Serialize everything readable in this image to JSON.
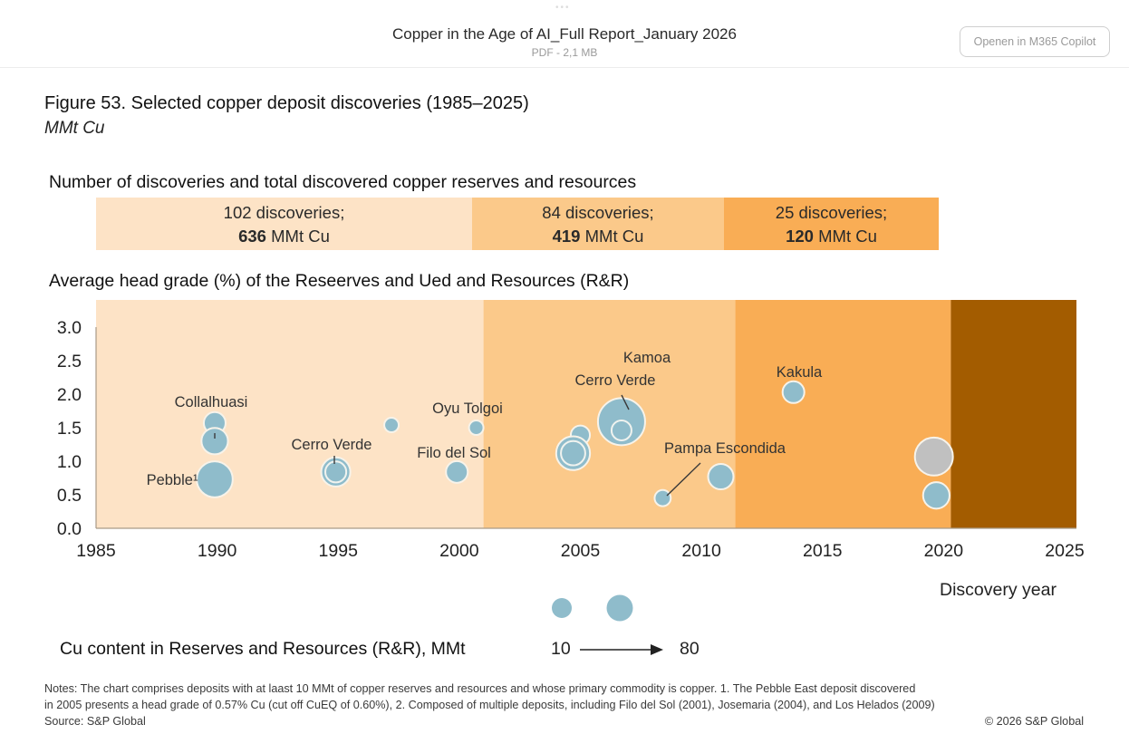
{
  "header": {
    "ellipsis": "•••",
    "title": "Copper in the Age of AI_Full Report_January 2026",
    "meta": "PDF - 2,1 MB",
    "open_button": "Openen in M365 Copilot"
  },
  "figure": {
    "title": "Figure 53. Selected copper deposit discoveries (1985–2025)",
    "unit": "MMt Cu",
    "section1_title": "Number of discoveries and total discovered copper reserves and resources",
    "section2_title": "Average head grade (%) of the Reseerves and Ued and Resources (R&R)",
    "periods": [
      {
        "discoveries": "102 discoveries;",
        "amount": "636",
        "unit": " MMt Cu",
        "color": "#fde3c6"
      },
      {
        "discoveries": "84 discoveries;",
        "amount": "419",
        "unit": " MMt Cu",
        "color": "#fbc98a"
      },
      {
        "discoveries": "25 discoveries;",
        "amount": "120",
        "unit": " MMt Cu",
        "color": "#f9ad55"
      }
    ],
    "legend": {
      "title": "Cu content in Reserves  and Resources (R&R),  MMt",
      "min_label": "10",
      "max_label": "80"
    },
    "notes_line1": "Notes: The chart comprises deposits with at laast 10 MMt of copper reserves and resources and whose primary commodity is copper. 1. The Pebble East deposit discovered",
    "notes_line2": "in 2005 presents a head grade of 0.57% Cu (cut off CuEQ of 0.60%), 2. Composed of multiple deposits, including Filo del Sol (2001), Josemaria (2004), and Los Helados (2009)",
    "source": "Source: S&P Global",
    "copyright": "© 2026 S&P Global"
  },
  "chart_data": {
    "type": "scatter",
    "subtype": "bubble",
    "title": "Average head grade (%) of the Reseerves and Ued and Resources (R&R)",
    "xlabel": "Discovery year",
    "ylabel": "",
    "xlim": [
      1985,
      2025
    ],
    "ylim": [
      0,
      3.0
    ],
    "xticks": [
      "1985",
      "1990",
      "1995",
      "2000",
      "2005",
      "2010",
      "2015",
      "2020",
      "2025"
    ],
    "yticks": [
      "0.0",
      "0.5",
      "1.0",
      "1.5",
      "2.0",
      "2.5",
      "3.0"
    ],
    "grid": false,
    "bands": [
      {
        "from": 1985,
        "to": 2001,
        "color": "#fde3c6"
      },
      {
        "from": 2001,
        "to": 2011.4,
        "color": "#fbc98a"
      },
      {
        "from": 2011.4,
        "to": 2020.3,
        "color": "#f9ad55"
      },
      {
        "from": 2020.3,
        "to": 2025.5,
        "color": "#a35c00"
      }
    ],
    "bubble_color": "#8fbccb",
    "pending_color": "#c0c0c0",
    "points": [
      {
        "year": 1989.9,
        "grade": 1.57,
        "size": 22,
        "label": "Collalhuasi"
      },
      {
        "year": 1989.9,
        "grade": 1.3,
        "size": 30,
        "label": ""
      },
      {
        "year": 1989.9,
        "grade": 0.73,
        "size": 50,
        "label": "Pebble¹"
      },
      {
        "year": 1994.9,
        "grade": 0.84,
        "size": 35,
        "label": "Cerro Verde",
        "ring": true
      },
      {
        "year": 1997.2,
        "grade": 1.54,
        "size": 12,
        "label": ""
      },
      {
        "year": 1999.9,
        "grade": 0.84,
        "size": 22,
        "label": "Filo del Sol"
      },
      {
        "year": 2000.7,
        "grade": 1.5,
        "size": 12,
        "label": "Oyu Tolgoi"
      },
      {
        "year": 2005.0,
        "grade": 1.39,
        "size": 18,
        "label": ""
      },
      {
        "year": 2004.7,
        "grade": 1.12,
        "size": 45,
        "label": "",
        "ring": true
      },
      {
        "year": 2006.7,
        "grade": 1.59,
        "size": 80,
        "label": "Kamoa Cerro Verde",
        "ring": true
      },
      {
        "year": 2008.4,
        "grade": 0.45,
        "size": 14,
        "label": "Pampa Escondida"
      },
      {
        "year": 2010.8,
        "grade": 0.77,
        "size": 28,
        "label": ""
      },
      {
        "year": 2013.8,
        "grade": 2.03,
        "size": 22,
        "label": "Kakula"
      },
      {
        "year": 2019.6,
        "grade": 1.07,
        "size": 55,
        "label": "",
        "gray": true
      },
      {
        "year": 2019.7,
        "grade": 0.49,
        "size": 30,
        "label": ""
      }
    ],
    "legend_sizes": [
      10,
      80
    ]
  }
}
